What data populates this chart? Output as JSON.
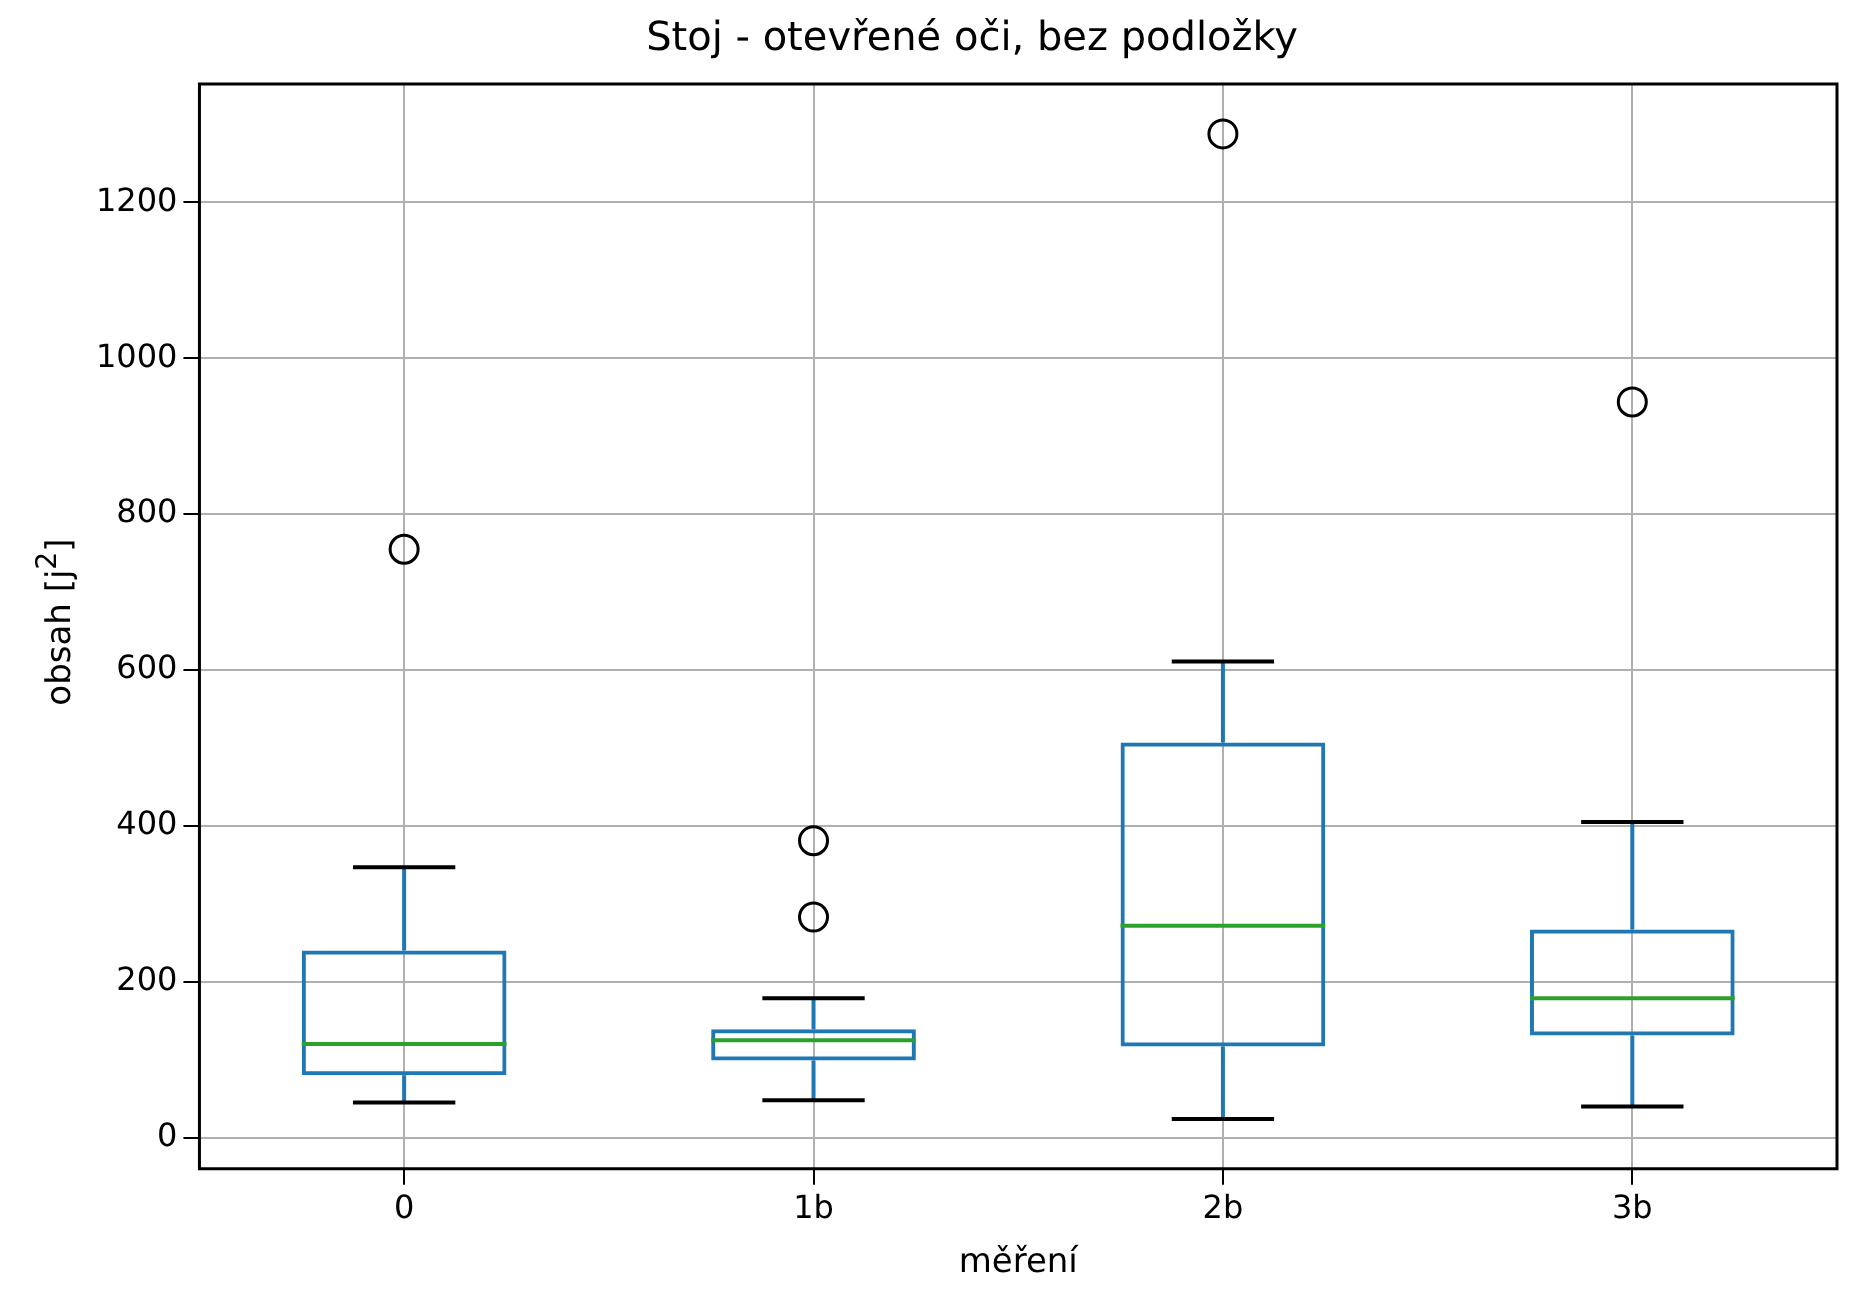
{
  "chart_data": {
    "type": "box",
    "title": "Stoj - otevřené oči, bez podložky",
    "xlabel": "měření",
    "ylabel": "obsah [j$^{2}$]",
    "categories": [
      "0",
      "1b",
      "2b",
      "3b"
    ],
    "series": [
      {
        "color": "#1f77b4",
        "boxes": [
          {
            "low": 45,
            "q1": 80,
            "median": 120,
            "q3": 240,
            "high": 347,
            "outliers": [
              755
            ]
          },
          {
            "low": 48,
            "q1": 99,
            "median": 125,
            "q3": 139,
            "high": 179,
            "outliers": [
              381,
              283
            ]
          },
          {
            "low": 24,
            "q1": 117,
            "median": 272,
            "q3": 507,
            "high": 611,
            "outliers": [
              1288
            ]
          },
          {
            "low": 40,
            "q1": 131,
            "median": 179,
            "q3": 267,
            "high": 405,
            "outliers": [
              944
            ]
          }
        ]
      }
    ],
    "ylim": [
      -40,
      1352
    ],
    "yticks": [
      0,
      200,
      400,
      600,
      800,
      1000,
      1200
    ],
    "grid": true,
    "legend": false
  }
}
